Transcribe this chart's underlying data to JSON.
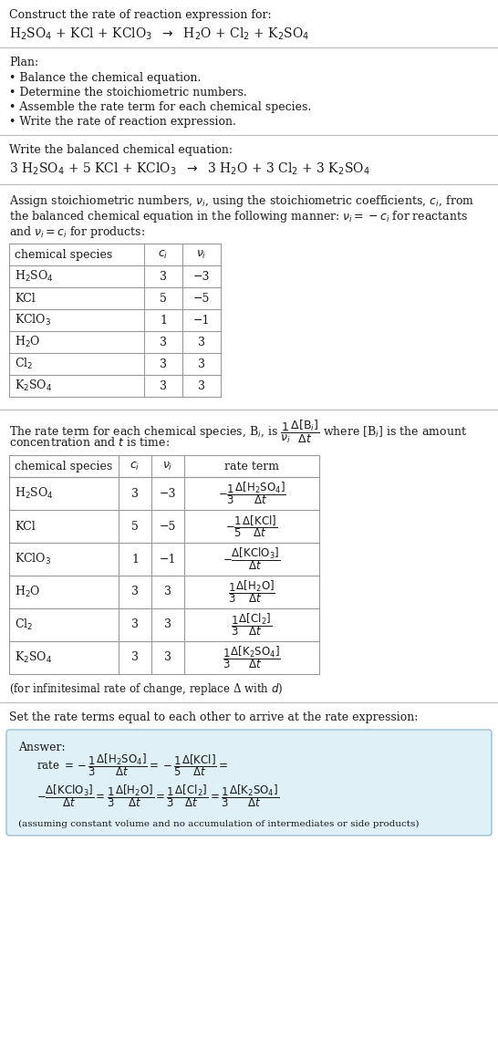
{
  "bg_color": "#ffffff",
  "text_color": "#1a1a1a",
  "title_line1": "Construct the rate of reaction expression for:",
  "plan_header": "Plan:",
  "plan_items": [
    "• Balance the chemical equation.",
    "• Determine the stoichiometric numbers.",
    "• Assemble the rate term for each chemical species.",
    "• Write the rate of reaction expression."
  ],
  "balanced_header": "Write the balanced chemical equation:",
  "stoich_intro1": "Assign stoichiometric numbers, $\\nu_i$, using the stoichiometric coefficients, $c_i$, from",
  "stoich_intro2": "the balanced chemical equation in the following manner: $\\nu_i = -c_i$ for reactants",
  "stoich_intro3": "and $\\nu_i = c_i$ for products:",
  "table1_headers": [
    "chemical species",
    "$c_i$",
    "$\\nu_i$"
  ],
  "table1_data": [
    [
      "H$_2$SO$_4$",
      "3",
      "−3"
    ],
    [
      "KCl",
      "5",
      "−5"
    ],
    [
      "KClO$_3$",
      "1",
      "−1"
    ],
    [
      "H$_2$O",
      "3",
      "3"
    ],
    [
      "Cl$_2$",
      "3",
      "3"
    ],
    [
      "K$_2$SO$_4$",
      "3",
      "3"
    ]
  ],
  "rate_intro1": "The rate term for each chemical species, B$_i$, is $\\dfrac{1}{\\nu_i}\\dfrac{\\Delta[\\mathrm{B}_i]}{\\Delta t}$ where [B$_i$] is the amount",
  "rate_intro2": "concentration and $t$ is time:",
  "table2_headers": [
    "chemical species",
    "$c_i$",
    "$\\nu_i$",
    "rate term"
  ],
  "table2_data_plain": [
    [
      "H$_2$SO$_4$",
      "3",
      "−3"
    ],
    [
      "KCl",
      "5",
      "−5"
    ],
    [
      "KClO$_3$",
      "1",
      "−1"
    ],
    [
      "H$_2$O",
      "3",
      "3"
    ],
    [
      "Cl$_2$",
      "3",
      "3"
    ],
    [
      "K$_2$SO$_4$",
      "3",
      "3"
    ]
  ],
  "table2_rate_terms": [
    "$-\\dfrac{1}{3}\\dfrac{\\Delta[\\mathrm{H_2SO_4}]}{\\Delta t}$",
    "$-\\dfrac{1}{5}\\dfrac{\\Delta[\\mathrm{KCl}]}{\\Delta t}$",
    "$-\\dfrac{\\Delta[\\mathrm{KClO_3}]}{\\Delta t}$",
    "$\\dfrac{1}{3}\\dfrac{\\Delta[\\mathrm{H_2O}]}{\\Delta t}$",
    "$\\dfrac{1}{3}\\dfrac{\\Delta[\\mathrm{Cl_2}]}{\\Delta t}$",
    "$\\dfrac{1}{3}\\dfrac{\\Delta[\\mathrm{K_2SO_4}]}{\\Delta t}$"
  ],
  "infinitesimal_note": "(for infinitesimal rate of change, replace Δ with $d$)",
  "set_equal_text": "Set the rate terms equal to each other to arrive at the rate expression:",
  "answer_box_color": "#dff0f7",
  "answer_border_color": "#9bbfd4",
  "answer_label": "Answer:",
  "answer_note": "(assuming constant volume and no accumulation of intermediates or side products)"
}
